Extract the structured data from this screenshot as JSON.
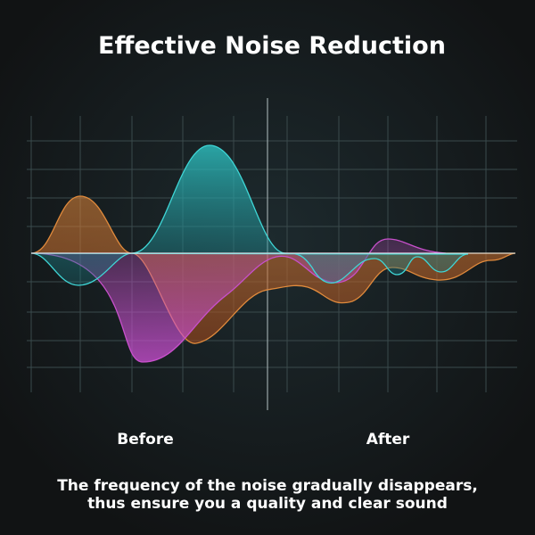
{
  "header": {
    "title": "Effective Noise Reduction"
  },
  "labels": {
    "before": "Before",
    "after": "After"
  },
  "caption": {
    "lines": [
      "The frequency of the noise gradually disappears,",
      "thus ensure you a quality and clear sound"
    ]
  }
}
